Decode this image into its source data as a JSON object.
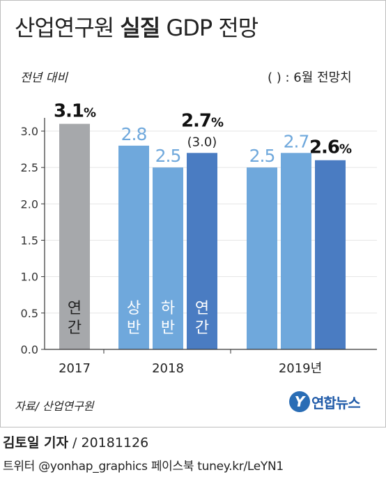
{
  "header": {
    "title_prefix": "산업연구원",
    "title_bold": "실질",
    "title_suffix": "GDP 전망",
    "unit_label": "전년 대비",
    "note": "( ) : 6월 전망치"
  },
  "footer": {
    "source": "자료/ 산업연구원",
    "logo_mark": "Y",
    "logo_text": "연합뉴스",
    "reporter": "김토일 기자",
    "date": " / 20181126",
    "social": "트위터 @yonhap_graphics  페이스북 tuney.kr/LeYN1"
  },
  "colors": {
    "gray": "#a6a8ab",
    "light_blue": "#6fa8dc",
    "dark_blue": "#4a7cc2",
    "axis": "#333333",
    "grid": "#e5e5e5"
  },
  "chart_data": {
    "type": "bar",
    "ylim": [
      0,
      3.0
    ],
    "yticks": [
      "0.0",
      "0.5",
      "1.0",
      "1.5",
      "2.0",
      "2.5",
      "3.0"
    ],
    "grid": true,
    "groups": [
      {
        "label": "2017",
        "bars": [
          {
            "value": 3.1,
            "value_label": "3.1",
            "pct": "%",
            "color": "gray",
            "inside": [
              "연",
              "간"
            ],
            "emph": true
          }
        ]
      },
      {
        "label": "2018",
        "bars": [
          {
            "value": 2.8,
            "value_label": "2.8",
            "color": "light_blue",
            "inside": [
              "상",
              "반"
            ]
          },
          {
            "value": 2.5,
            "value_label": "2.5",
            "color": "light_blue",
            "inside": [
              "하",
              "반"
            ]
          },
          {
            "value": 2.7,
            "value_label": "2.7",
            "pct": "%",
            "paren": "(3.0)",
            "color": "dark_blue",
            "inside": [
              "연",
              "간"
            ],
            "emph": true
          }
        ]
      },
      {
        "label": "2019년",
        "bars": [
          {
            "value": 2.5,
            "value_label": "2.5",
            "color": "light_blue"
          },
          {
            "value": 2.7,
            "value_label": "2.7",
            "color": "light_blue"
          },
          {
            "value": 2.6,
            "value_label": "2.6",
            "pct": "%",
            "color": "dark_blue",
            "emph": true
          }
        ]
      }
    ]
  }
}
